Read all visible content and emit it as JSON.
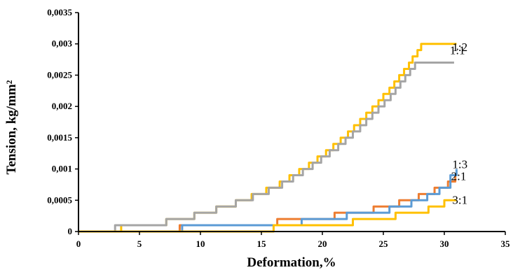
{
  "chart_data": {
    "type": "line",
    "xlabel": "Deformation,%",
    "ylabel": "Tension, kg/mm²",
    "xlim": [
      0,
      35
    ],
    "ylim": [
      0,
      0.0035
    ],
    "x_ticks": [
      0,
      5,
      10,
      15,
      20,
      25,
      30,
      35
    ],
    "x_tick_labels": [
      "0",
      "5",
      "10",
      "15",
      "20",
      "25",
      "30",
      "35"
    ],
    "y_ticks": [
      0,
      0.0005,
      0.001,
      0.0015,
      0.002,
      0.0025,
      0.003,
      0.0035
    ],
    "y_tick_labels": [
      "0",
      "0,0005",
      "0,001",
      "0,0015",
      "0,002",
      "0,0025",
      "0,003",
      "0,0035"
    ],
    "grid": false,
    "series": [
      {
        "name": "1:2",
        "color": "#FFC000",
        "x": [
          0,
          3.5,
          7.2,
          9.5,
          11.3,
          12.9,
          14.2,
          15.4,
          16.5,
          17.3,
          18.1,
          18.9,
          19.6,
          20.3,
          20.9,
          21.5,
          22.1,
          22.6,
          23.1,
          23.6,
          24.1,
          24.6,
          25.0,
          25.5,
          25.9,
          26.3,
          26.7,
          27.1,
          27.4,
          27.8,
          28.1,
          28.4,
          28.7,
          29.0,
          29.3,
          29.6,
          29.9,
          30.2,
          30.5,
          30.8,
          31.0
        ],
        "values": [
          0,
          0.0001,
          0.0002,
          0.0003,
          0.0004,
          0.0005,
          0.0006,
          0.0007,
          0.0008,
          0.0009,
          0.001,
          0.0011,
          0.0012,
          0.0013,
          0.0014,
          0.0015,
          0.0016,
          0.0017,
          0.0018,
          0.0019,
          0.002,
          0.0021,
          0.0022,
          0.0023,
          0.0024,
          0.0025,
          0.0026,
          0.0027,
          0.0028,
          0.0029,
          0.003,
          0.003,
          0.003,
          0.003,
          0.003,
          0.003,
          0.003,
          0.003,
          0.003,
          0.003,
          0.003
        ]
      },
      {
        "name": "1:1",
        "color": "#A5A5A5",
        "x": [
          0,
          3.0,
          7.2,
          9.5,
          11.3,
          12.9,
          14.3,
          15.6,
          16.7,
          17.6,
          18.4,
          19.2,
          19.9,
          20.6,
          21.3,
          21.9,
          22.5,
          23.1,
          23.6,
          24.1,
          24.6,
          25.1,
          25.6,
          26.0,
          26.4,
          26.8,
          27.2,
          27.6,
          28.0,
          28.4,
          28.8,
          29.2,
          29.6,
          30.0,
          30.4,
          30.8
        ],
        "values": [
          0,
          0.0001,
          0.0002,
          0.0003,
          0.0004,
          0.0005,
          0.0006,
          0.0007,
          0.0008,
          0.0009,
          0.001,
          0.0011,
          0.0012,
          0.0013,
          0.0014,
          0.0015,
          0.0016,
          0.0017,
          0.0018,
          0.0019,
          0.002,
          0.0021,
          0.0022,
          0.0023,
          0.0024,
          0.0025,
          0.0026,
          0.0027,
          0.0027,
          0.0027,
          0.0027,
          0.0027,
          0.0027,
          0.0027,
          0.0027,
          0.0027
        ],
        "steps": [
          0,
          0.0001,
          0.0002,
          0.0003,
          0.0004,
          0.0005,
          0.0006,
          0.0007,
          0.0008,
          0.0009,
          0.001,
          0.0011,
          0.0012,
          0.0013,
          0.0014,
          0.0015,
          0.0016,
          0.0017,
          0.0018,
          0.0019,
          0.002,
          0.0021,
          0.0022,
          0.0023,
          0.0024,
          0.0025,
          0.0026,
          0.0027
        ]
      },
      {
        "name": "1:3",
        "color": "#5B9BD5",
        "x": [
          0,
          8.5,
          18.3,
          22.0,
          25.5,
          27.3,
          28.6,
          29.6,
          30.5,
          31.0
        ],
        "values": [
          0,
          0.0001,
          0.0002,
          0.0003,
          0.0004,
          0.0005,
          0.0006,
          0.0007,
          0.0009,
          0.001
        ]
      },
      {
        "name": "2:1",
        "color": "#ED7D31",
        "x": [
          0,
          8.3,
          16.3,
          21.0,
          24.2,
          26.3,
          27.9,
          29.2,
          30.3,
          30.9
        ],
        "values": [
          0,
          0.0001,
          0.0002,
          0.0003,
          0.0004,
          0.0005,
          0.0006,
          0.0007,
          0.0008,
          0.0009
        ]
      },
      {
        "name": "3:1",
        "color": "#FFC000",
        "x": [
          0,
          16.0,
          22.5,
          26.0,
          28.7,
          30.0,
          31.0
        ],
        "values": [
          0,
          0.0001,
          0.0002,
          0.0003,
          0.0004,
          0.0005,
          0.0005
        ]
      }
    ]
  }
}
